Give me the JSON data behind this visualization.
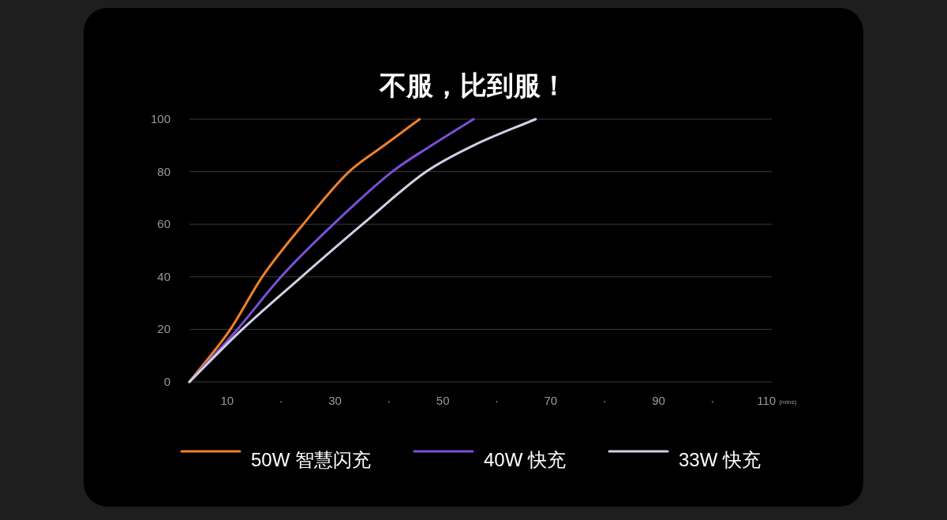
{
  "chart_data": {
    "type": "line",
    "title": "不服，比到服！",
    "xlabel": "(mins)",
    "xlim": [
      3,
      111
    ],
    "ylim": [
      0,
      100
    ],
    "xticks": [
      10,
      {
        "value": 20,
        "label": "·"
      },
      30,
      {
        "value": 40,
        "label": "·"
      },
      50,
      {
        "value": 60,
        "label": "·"
      },
      70,
      {
        "value": 80,
        "label": "·"
      },
      90,
      {
        "value": 100,
        "label": "·"
      },
      110
    ],
    "yticks": [
      0,
      20,
      40,
      60,
      80,
      100
    ],
    "grid": "y",
    "legend": "bottom",
    "marker": "none",
    "line_style": "solid",
    "series": [
      {
        "name": "50W 智慧闪充",
        "color": "#f0802a",
        "x": [
          3,
          10.6,
          16.5,
          24.1,
          32.6,
          39.1,
          45.7
        ],
        "values": [
          0,
          20,
          40,
          60,
          80,
          90,
          100
        ]
      },
      {
        "name": "40W 快充",
        "color": "#7b4fd6",
        "x": [
          3,
          11.9,
          20,
          29.7,
          40.6,
          47.9,
          55.7
        ],
        "values": [
          0,
          20,
          40,
          60,
          80,
          90,
          100
        ]
      },
      {
        "name": "33W 快充",
        "color": "#d0d0e8",
        "x": [
          3,
          12.8,
          23.8,
          35.1,
          46.9,
          55.7,
          67.2
        ],
        "values": [
          0,
          20,
          40,
          60,
          80,
          90,
          100
        ]
      }
    ]
  }
}
